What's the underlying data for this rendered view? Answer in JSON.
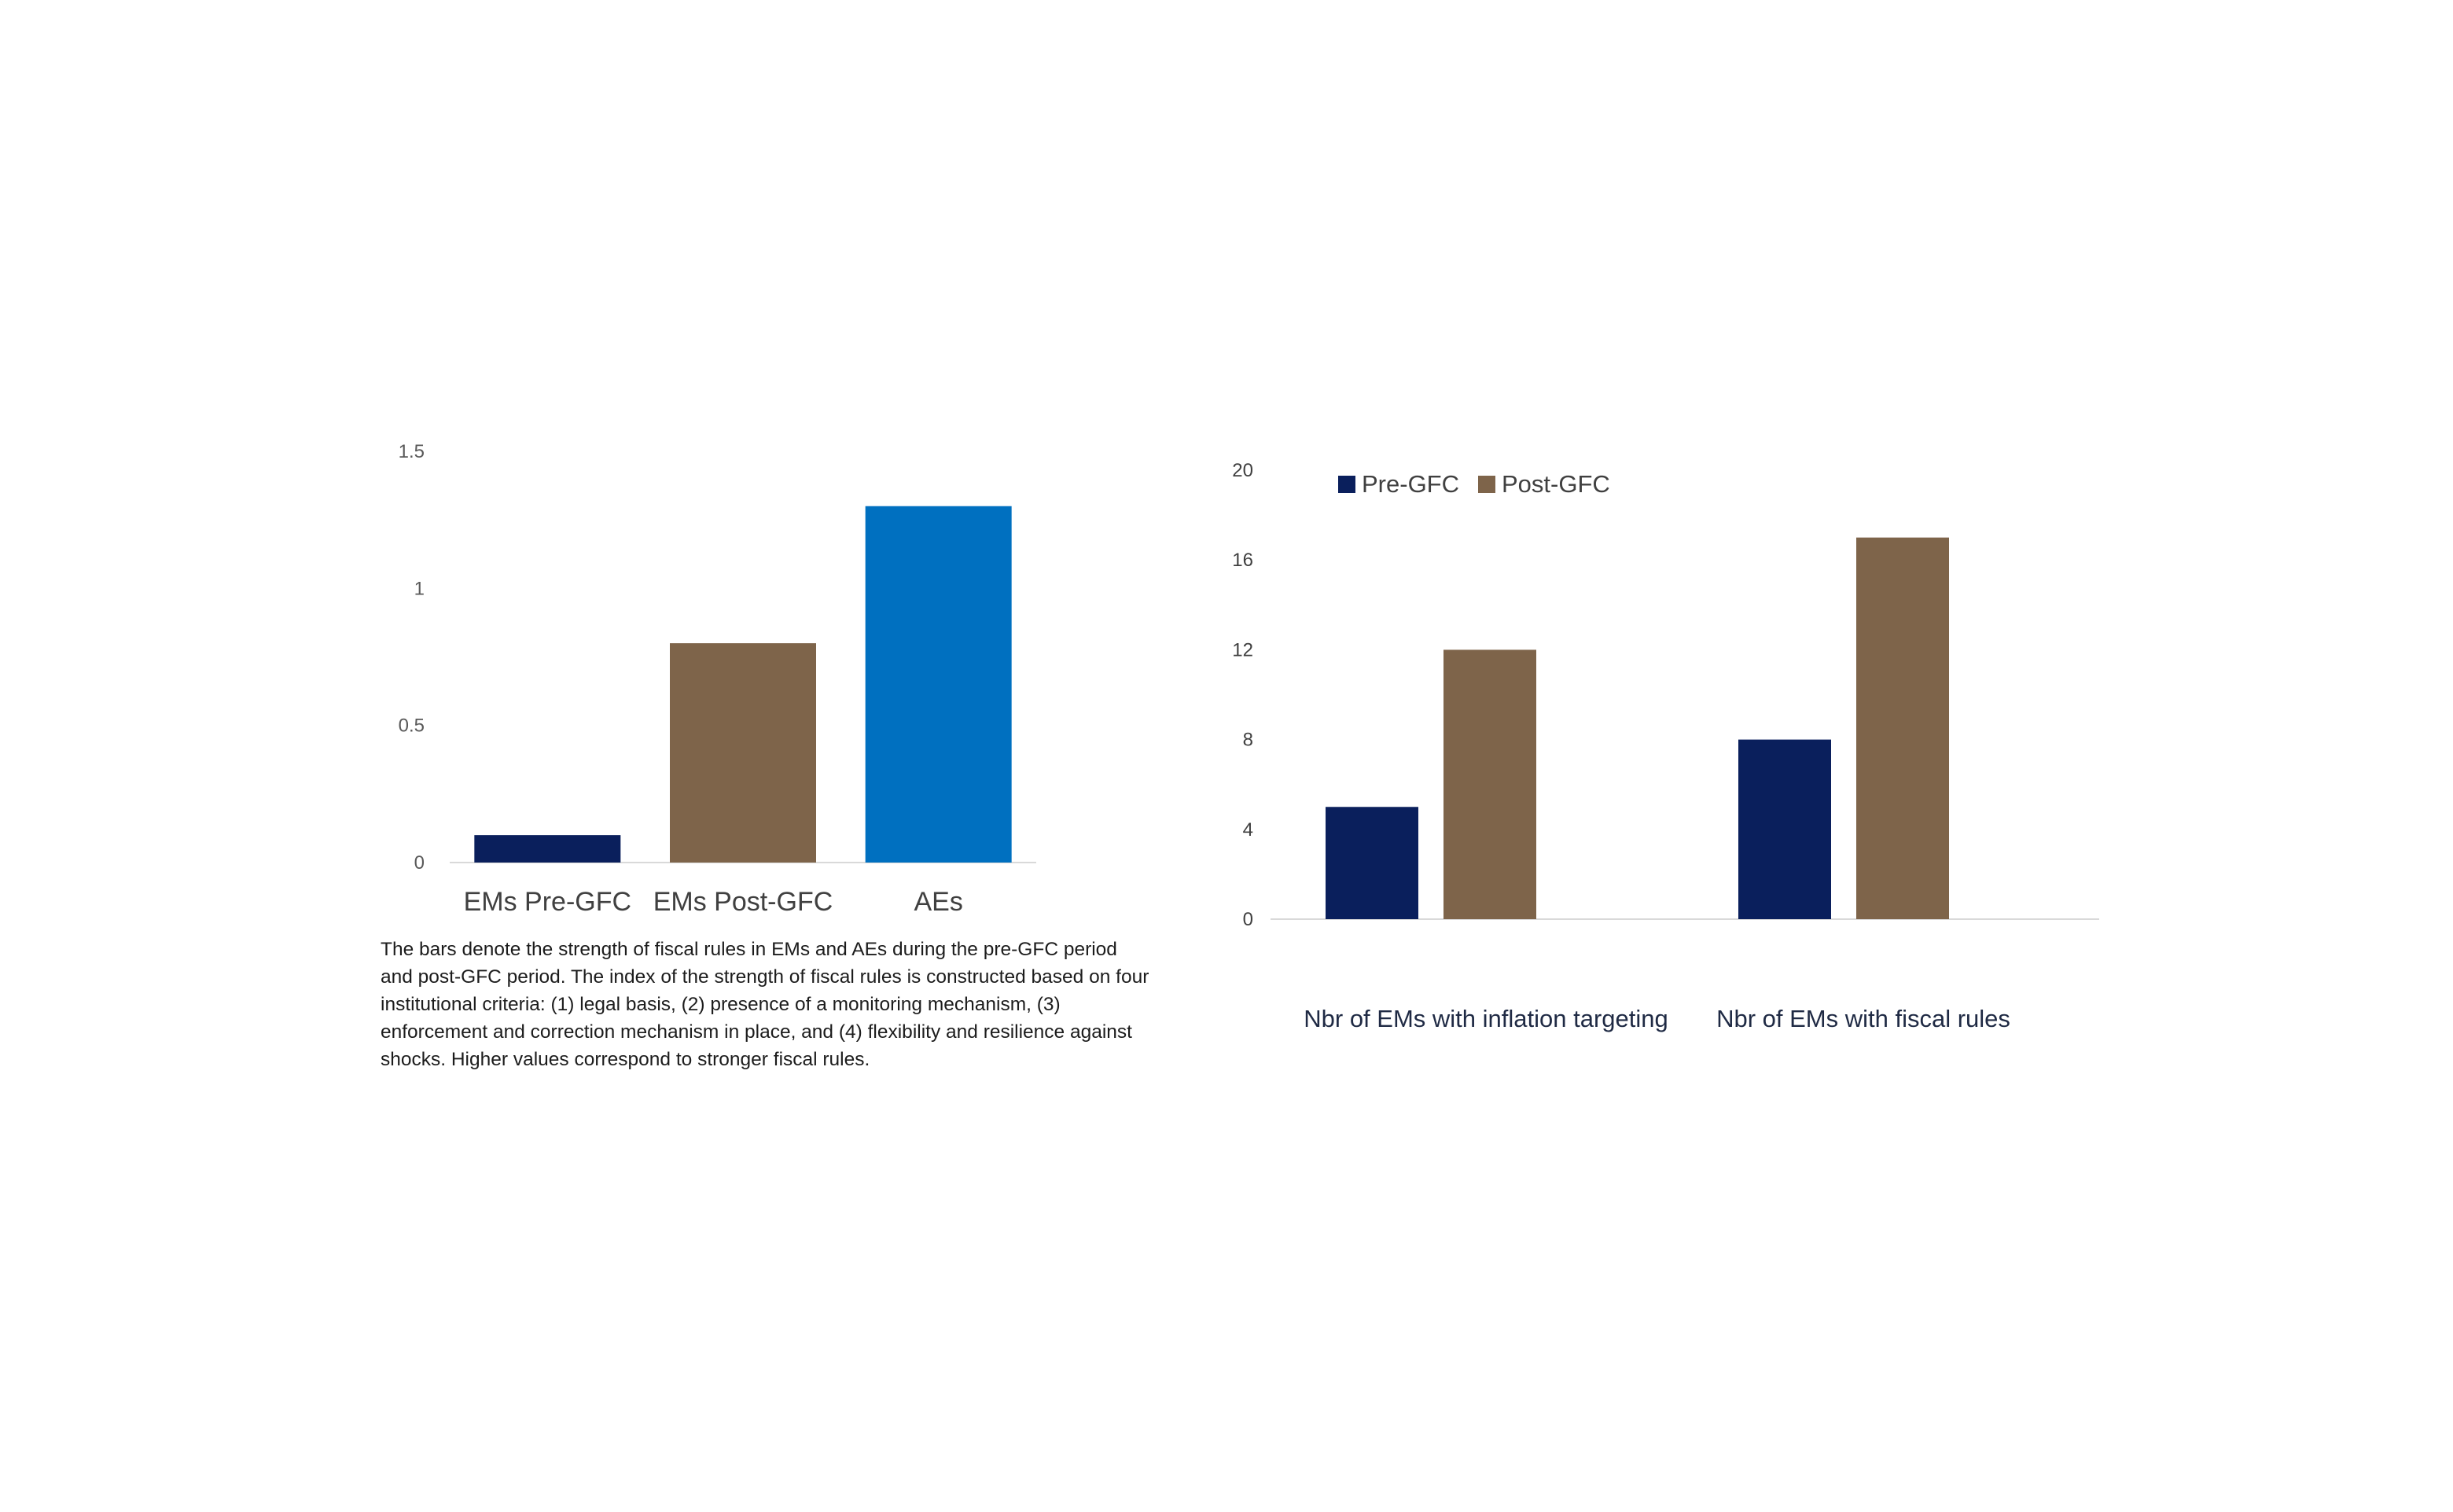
{
  "chart_data": [
    {
      "type": "bar",
      "title": "",
      "xlabel": "",
      "ylabel": "",
      "categories": [
        "EMs Pre-GFC",
        "EMs Post-GFC",
        "AEs"
      ],
      "values": [
        0.1,
        0.8,
        1.3
      ],
      "colors": [
        "#0a1f5c",
        "#7e644a",
        "#0070c0"
      ],
      "ylim": [
        0,
        1.5
      ],
      "yticks": [
        0,
        0.5,
        1,
        1.5
      ],
      "ytick_labels": [
        "0",
        "0.5",
        "1",
        "1.5"
      ],
      "grid": false,
      "legend": null
    },
    {
      "type": "bar",
      "title": "",
      "xlabel": "",
      "ylabel": "",
      "categories": [
        "Nbr of EMs with inflation targeting",
        "Nbr of EMs with fiscal rules"
      ],
      "series": [
        {
          "name": "Pre-GFC",
          "values": [
            5,
            8
          ],
          "color": "#0a1f5c"
        },
        {
          "name": "Post-GFC",
          "values": [
            12,
            17
          ],
          "color": "#7e644a"
        }
      ],
      "ylim": [
        0,
        20
      ],
      "yticks": [
        0,
        4,
        8,
        12,
        16,
        20
      ],
      "ytick_labels": [
        "0",
        "4",
        "8",
        "12",
        "16",
        "20"
      ],
      "grid": false,
      "legend": "top-left"
    }
  ],
  "note": "The bars denote the strength of fiscal rules in EMs and AEs during the pre-GFC period and post-GFC period. The index of the strength of fiscal rules is constructed based on four institutional criteria: (1) legal basis, (2) presence of a monitoring mechanism, (3) enforcement and correction mechanism in place, and (4) flexibility and resilience against shocks. Higher values correspond to stronger fiscal rules."
}
